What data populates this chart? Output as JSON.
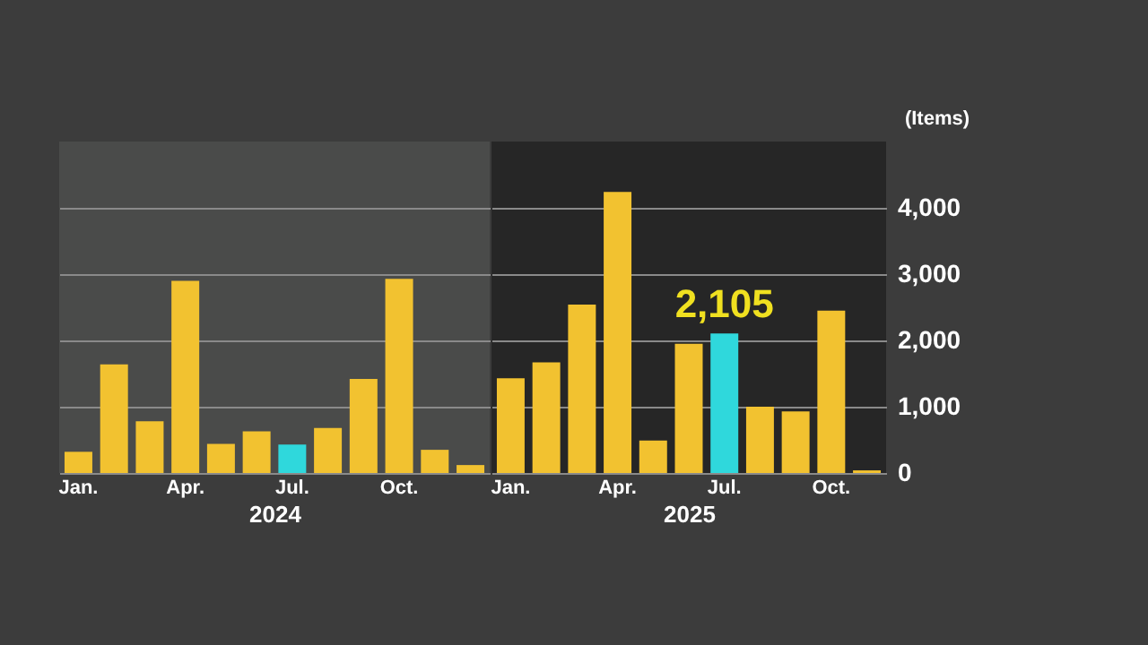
{
  "chart_data": [
    {
      "type": "bar",
      "xlabel": "2024",
      "categories": [
        "Jan.",
        null,
        null,
        "Apr.",
        null,
        null,
        "Jul.",
        null,
        null,
        "Oct.",
        null,
        null
      ],
      "values": [
        320,
        1640,
        780,
        2900,
        440,
        630,
        430,
        680,
        1420,
        2930,
        350,
        120
      ],
      "colors": [
        "#f2c230",
        "#f2c230",
        "#f2c230",
        "#f2c230",
        "#f2c230",
        "#f2c230",
        "#2fd8dc",
        "#f2c230",
        "#f2c230",
        "#f2c230",
        "#f2c230",
        "#f2c230"
      ],
      "ylim": [
        0,
        5000
      ],
      "yticks": [
        0,
        1000,
        2000,
        3000,
        4000
      ],
      "grid": "y",
      "tick_labels": "x"
    },
    {
      "type": "bar",
      "xlabel": "2025",
      "ylabel": "(Items)",
      "categories": [
        "Jan.",
        null,
        null,
        "Apr.",
        null,
        null,
        "Jul.",
        null,
        null,
        "Oct.",
        null
      ],
      "values": [
        1430,
        1670,
        2540,
        4240,
        490,
        1950,
        2105,
        1000,
        930,
        2450,
        40
      ],
      "colors": [
        "#f2c230",
        "#f2c230",
        "#f2c230",
        "#f2c230",
        "#f2c230",
        "#f2c230",
        "#2fd8dc",
        "#f2c230",
        "#f2c230",
        "#f2c230",
        "#f2c230"
      ],
      "value_labels": [
        null,
        null,
        null,
        null,
        null,
        null,
        "2,105",
        null,
        null,
        null,
        null
      ],
      "ylim": [
        0,
        5000
      ],
      "yticks": [
        0,
        {
          "value": 1000,
          "label": "1,000"
        },
        {
          "value": 2000,
          "label": "2,000"
        },
        {
          "value": 3000,
          "label": "3,000"
        },
        {
          "value": 4000,
          "label": "4,000"
        }
      ],
      "grid": "y"
    }
  ]
}
